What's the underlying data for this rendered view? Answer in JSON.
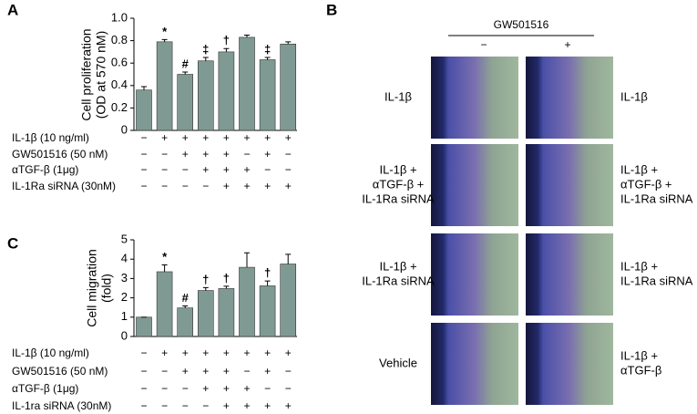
{
  "chart_data": [
    {
      "type": "bar",
      "panel": "A",
      "ylabel": [
        "Cell proliferation",
        "(OD at 570 nM)"
      ],
      "values": [
        0.36,
        0.79,
        0.5,
        0.62,
        0.7,
        0.83,
        0.63,
        0.77
      ],
      "errors": [
        0.03,
        0.02,
        0.02,
        0.03,
        0.03,
        0.02,
        0.02,
        0.02
      ],
      "annotations": [
        null,
        "*",
        "#",
        "‡",
        "†",
        null,
        "‡",
        null
      ],
      "color": "#7f9a92",
      "ylim": [
        0,
        1.0
      ],
      "yticks": [
        0,
        0.2,
        0.4,
        0.6,
        0.8,
        {
          "value": 1.0,
          "label": "1.0"
        }
      ],
      "conditions": [
        {
          "label": "IL-1β (10 ng/ml)",
          "signs": [
            "−",
            "+",
            "+",
            "+",
            "+",
            "+",
            "+",
            "+"
          ]
        },
        {
          "label": "GW501516 (50 nM)",
          "signs": [
            "−",
            "−",
            "+",
            "+",
            "+",
            "−",
            "+",
            "−"
          ]
        },
        {
          "label": "αTGF-β (1μg)",
          "signs": [
            "−",
            "−",
            "−",
            "+",
            "+",
            "+",
            "−",
            "−"
          ]
        },
        {
          "label": "IL-1Ra siRNA (30nM)",
          "signs": [
            "−",
            "−",
            "−",
            "−",
            "+",
            "+",
            "+",
            "+"
          ]
        }
      ]
    },
    {
      "type": "bar",
      "panel": "C",
      "ylabel": [
        "Cell migration",
        "(fold)"
      ],
      "values": [
        1.0,
        3.35,
        1.48,
        2.38,
        2.48,
        3.58,
        2.62,
        3.75
      ],
      "errors": [
        0,
        0.35,
        0.1,
        0.15,
        0.12,
        0.75,
        0.25,
        0.5
      ],
      "annotations": [
        null,
        "*",
        "#",
        "†",
        "†",
        null,
        "†",
        null
      ],
      "color": "#7f9a92",
      "ylim": [
        0,
        5
      ],
      "yticks": [
        0,
        1,
        2,
        3,
        4,
        5
      ],
      "conditions": [
        {
          "label": "IL-1β (10 ng/ml)",
          "signs": [
            "−",
            "+",
            "+",
            "+",
            "+",
            "+",
            "+",
            "+"
          ]
        },
        {
          "label": "GW501516 (50 nM)",
          "signs": [
            "−",
            "−",
            "+",
            "+",
            "+",
            "−",
            "+",
            "−"
          ]
        },
        {
          "label": "αTGF-β (1μg)",
          "signs": [
            "−",
            "−",
            "−",
            "+",
            "+",
            "+",
            "−",
            "−"
          ]
        },
        {
          "label": "IL-1ra siRNA (30nM)",
          "signs": [
            "−",
            "−",
            "−",
            "−",
            "+",
            "+",
            "+",
            "+"
          ]
        }
      ]
    }
  ],
  "panel_b": {
    "panel": "B",
    "header": "GW501516",
    "columns": [
      "−",
      "+"
    ],
    "rows": [
      {
        "left": [
          "IL-1β"
        ],
        "right": [
          "IL-1β"
        ]
      },
      {
        "left": [
          "IL-1β +",
          "αTGF-β +",
          "IL-1Ra siRNA"
        ],
        "right": [
          "IL-1β +",
          "αTGF-β +",
          "IL-1Ra siRNA"
        ]
      },
      {
        "left": [
          "IL-1β +",
          "IL-1Ra siRNA"
        ],
        "right": [
          "IL-1β +",
          "IL-1Ra siRNA"
        ]
      },
      {
        "left": [
          "Vehicle"
        ],
        "right": [
          "IL-1β +",
          "αTGF-β"
        ]
      }
    ]
  }
}
